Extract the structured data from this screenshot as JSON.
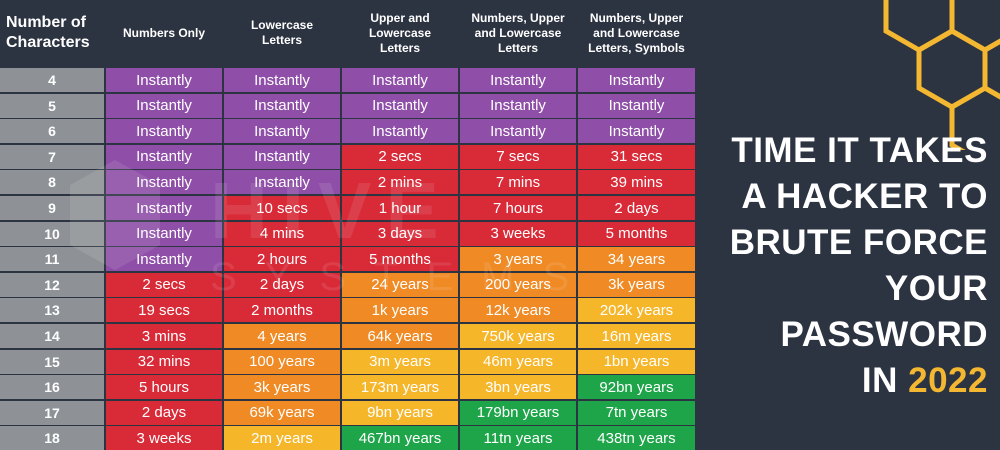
{
  "chart_data": {
    "type": "table",
    "columns": [
      "Number of\nCharacters",
      "Numbers Only",
      "Lowercase\nLetters",
      "Upper and\nLowercase\nLetters",
      "Numbers, Upper\nand Lowercase\nLetters",
      "Numbers, Upper\nand Lowercase\nLetters, Symbols"
    ],
    "rows": [
      {
        "chars": "4",
        "values": [
          "Instantly",
          "Instantly",
          "Instantly",
          "Instantly",
          "Instantly"
        ],
        "levels": [
          0,
          0,
          0,
          0,
          0
        ]
      },
      {
        "chars": "5",
        "values": [
          "Instantly",
          "Instantly",
          "Instantly",
          "Instantly",
          "Instantly"
        ],
        "levels": [
          0,
          0,
          0,
          0,
          0
        ]
      },
      {
        "chars": "6",
        "values": [
          "Instantly",
          "Instantly",
          "Instantly",
          "Instantly",
          "Instantly"
        ],
        "levels": [
          0,
          0,
          0,
          0,
          0
        ]
      },
      {
        "chars": "7",
        "values": [
          "Instantly",
          "Instantly",
          "2 secs",
          "7 secs",
          "31 secs"
        ],
        "levels": [
          0,
          0,
          1,
          1,
          1
        ]
      },
      {
        "chars": "8",
        "values": [
          "Instantly",
          "Instantly",
          "2 mins",
          "7 mins",
          "39 mins"
        ],
        "levels": [
          0,
          0,
          1,
          1,
          1
        ]
      },
      {
        "chars": "9",
        "values": [
          "Instantly",
          "10 secs",
          "1 hour",
          "7 hours",
          "2 days"
        ],
        "levels": [
          0,
          1,
          1,
          1,
          1
        ]
      },
      {
        "chars": "10",
        "values": [
          "Instantly",
          "4 mins",
          "3 days",
          "3 weeks",
          "5 months"
        ],
        "levels": [
          0,
          1,
          1,
          1,
          1
        ]
      },
      {
        "chars": "11",
        "values": [
          "Instantly",
          "2 hours",
          "5 months",
          "3 years",
          "34 years"
        ],
        "levels": [
          0,
          1,
          1,
          2,
          2
        ]
      },
      {
        "chars": "12",
        "values": [
          "2 secs",
          "2 days",
          "24 years",
          "200 years",
          "3k years"
        ],
        "levels": [
          1,
          1,
          2,
          2,
          2
        ]
      },
      {
        "chars": "13",
        "values": [
          "19 secs",
          "2 months",
          "1k years",
          "12k years",
          "202k years"
        ],
        "levels": [
          1,
          1,
          2,
          2,
          3
        ]
      },
      {
        "chars": "14",
        "values": [
          "3 mins",
          "4 years",
          "64k years",
          "750k years",
          "16m years"
        ],
        "levels": [
          1,
          2,
          2,
          3,
          3
        ]
      },
      {
        "chars": "15",
        "values": [
          "32 mins",
          "100 years",
          "3m years",
          "46m years",
          "1bn years"
        ],
        "levels": [
          1,
          2,
          3,
          3,
          3
        ]
      },
      {
        "chars": "16",
        "values": [
          "5 hours",
          "3k years",
          "173m years",
          "3bn years",
          "92bn years"
        ],
        "levels": [
          1,
          2,
          3,
          3,
          4
        ]
      },
      {
        "chars": "17",
        "values": [
          "2 days",
          "69k years",
          "9bn years",
          "179bn years",
          "7tn years"
        ],
        "levels": [
          1,
          2,
          3,
          4,
          4
        ]
      },
      {
        "chars": "18",
        "values": [
          "3 weeks",
          "2m years",
          "467bn years",
          "11tn years",
          "438tn years"
        ],
        "levels": [
          1,
          3,
          4,
          4,
          4
        ]
      }
    ],
    "level_colors": [
      "#8f4fa8",
      "#d92a38",
      "#ef8a24",
      "#f6b62a",
      "#1ea54a"
    ],
    "row_label_color": "#8e9296",
    "background_color": "#2c3341"
  },
  "title": {
    "line1": "TIME IT TAKES",
    "line2": "A HACKER TO",
    "line3": "BRUTE FORCE",
    "line4": "YOUR",
    "line5": "PASSWORD",
    "line6_prefix": "IN",
    "year": "2022",
    "year_color": "#f4b731"
  },
  "watermark": {
    "line1": "HIVE",
    "line2": "SYSTEMS"
  },
  "decoration": {
    "hex_color": "#f4b731"
  }
}
